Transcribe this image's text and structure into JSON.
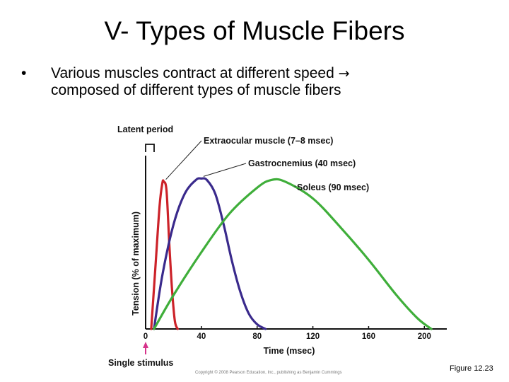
{
  "slide": {
    "title": "V- Types of Muscle Fibers",
    "bullet_symbol": "•",
    "bullet_line1": "Various muscles contract at different speed",
    "bullet_arrow": "→",
    "bullet_line2": "composed of different types of muscle fibers",
    "figure_label": "Figure 12.23",
    "copyright": "Copyright © 2008 Pearson Education, Inc., publishing as Benjamin Cummings"
  },
  "chart_data": {
    "type": "line",
    "title": "",
    "xlabel": "Time (msec)",
    "ylabel": "Tension (% of maximum)",
    "xlim": [
      0,
      210
    ],
    "ylim": [
      0,
      100
    ],
    "xticks": [
      0,
      40,
      80,
      120,
      160,
      200
    ],
    "grid": false,
    "annotations": {
      "latent_period": "Latent period",
      "single_stimulus": "Single stimulus"
    },
    "colors": {
      "extraocular": "#cc2229",
      "gastrocnemius": "#3a2a8c",
      "soleus": "#3fae3a",
      "stimulus_arrow": "#d6338b"
    },
    "series": [
      {
        "name": "Extraocular muscle (7–8 msec)",
        "x": [
          4,
          7,
          10,
          12,
          13,
          15,
          17,
          19,
          21,
          23
        ],
        "y": [
          0,
          40,
          80,
          95,
          96,
          90,
          55,
          25,
          5,
          0
        ]
      },
      {
        "name": "Gastrocnemius (40 msec)",
        "x": [
          6,
          12,
          20,
          28,
          36,
          40,
          44,
          50,
          56,
          62,
          68,
          74,
          80,
          86
        ],
        "y": [
          0,
          35,
          68,
          88,
          97,
          98,
          97,
          88,
          68,
          44,
          24,
          10,
          3,
          0
        ]
      },
      {
        "name": "Soleus (90 msec)",
        "x": [
          6,
          20,
          40,
          60,
          80,
          90,
          100,
          120,
          140,
          160,
          180,
          195,
          205
        ],
        "y": [
          0,
          22,
          50,
          75,
          92,
          97,
          96,
          85,
          66,
          45,
          22,
          7,
          0
        ]
      }
    ]
  }
}
